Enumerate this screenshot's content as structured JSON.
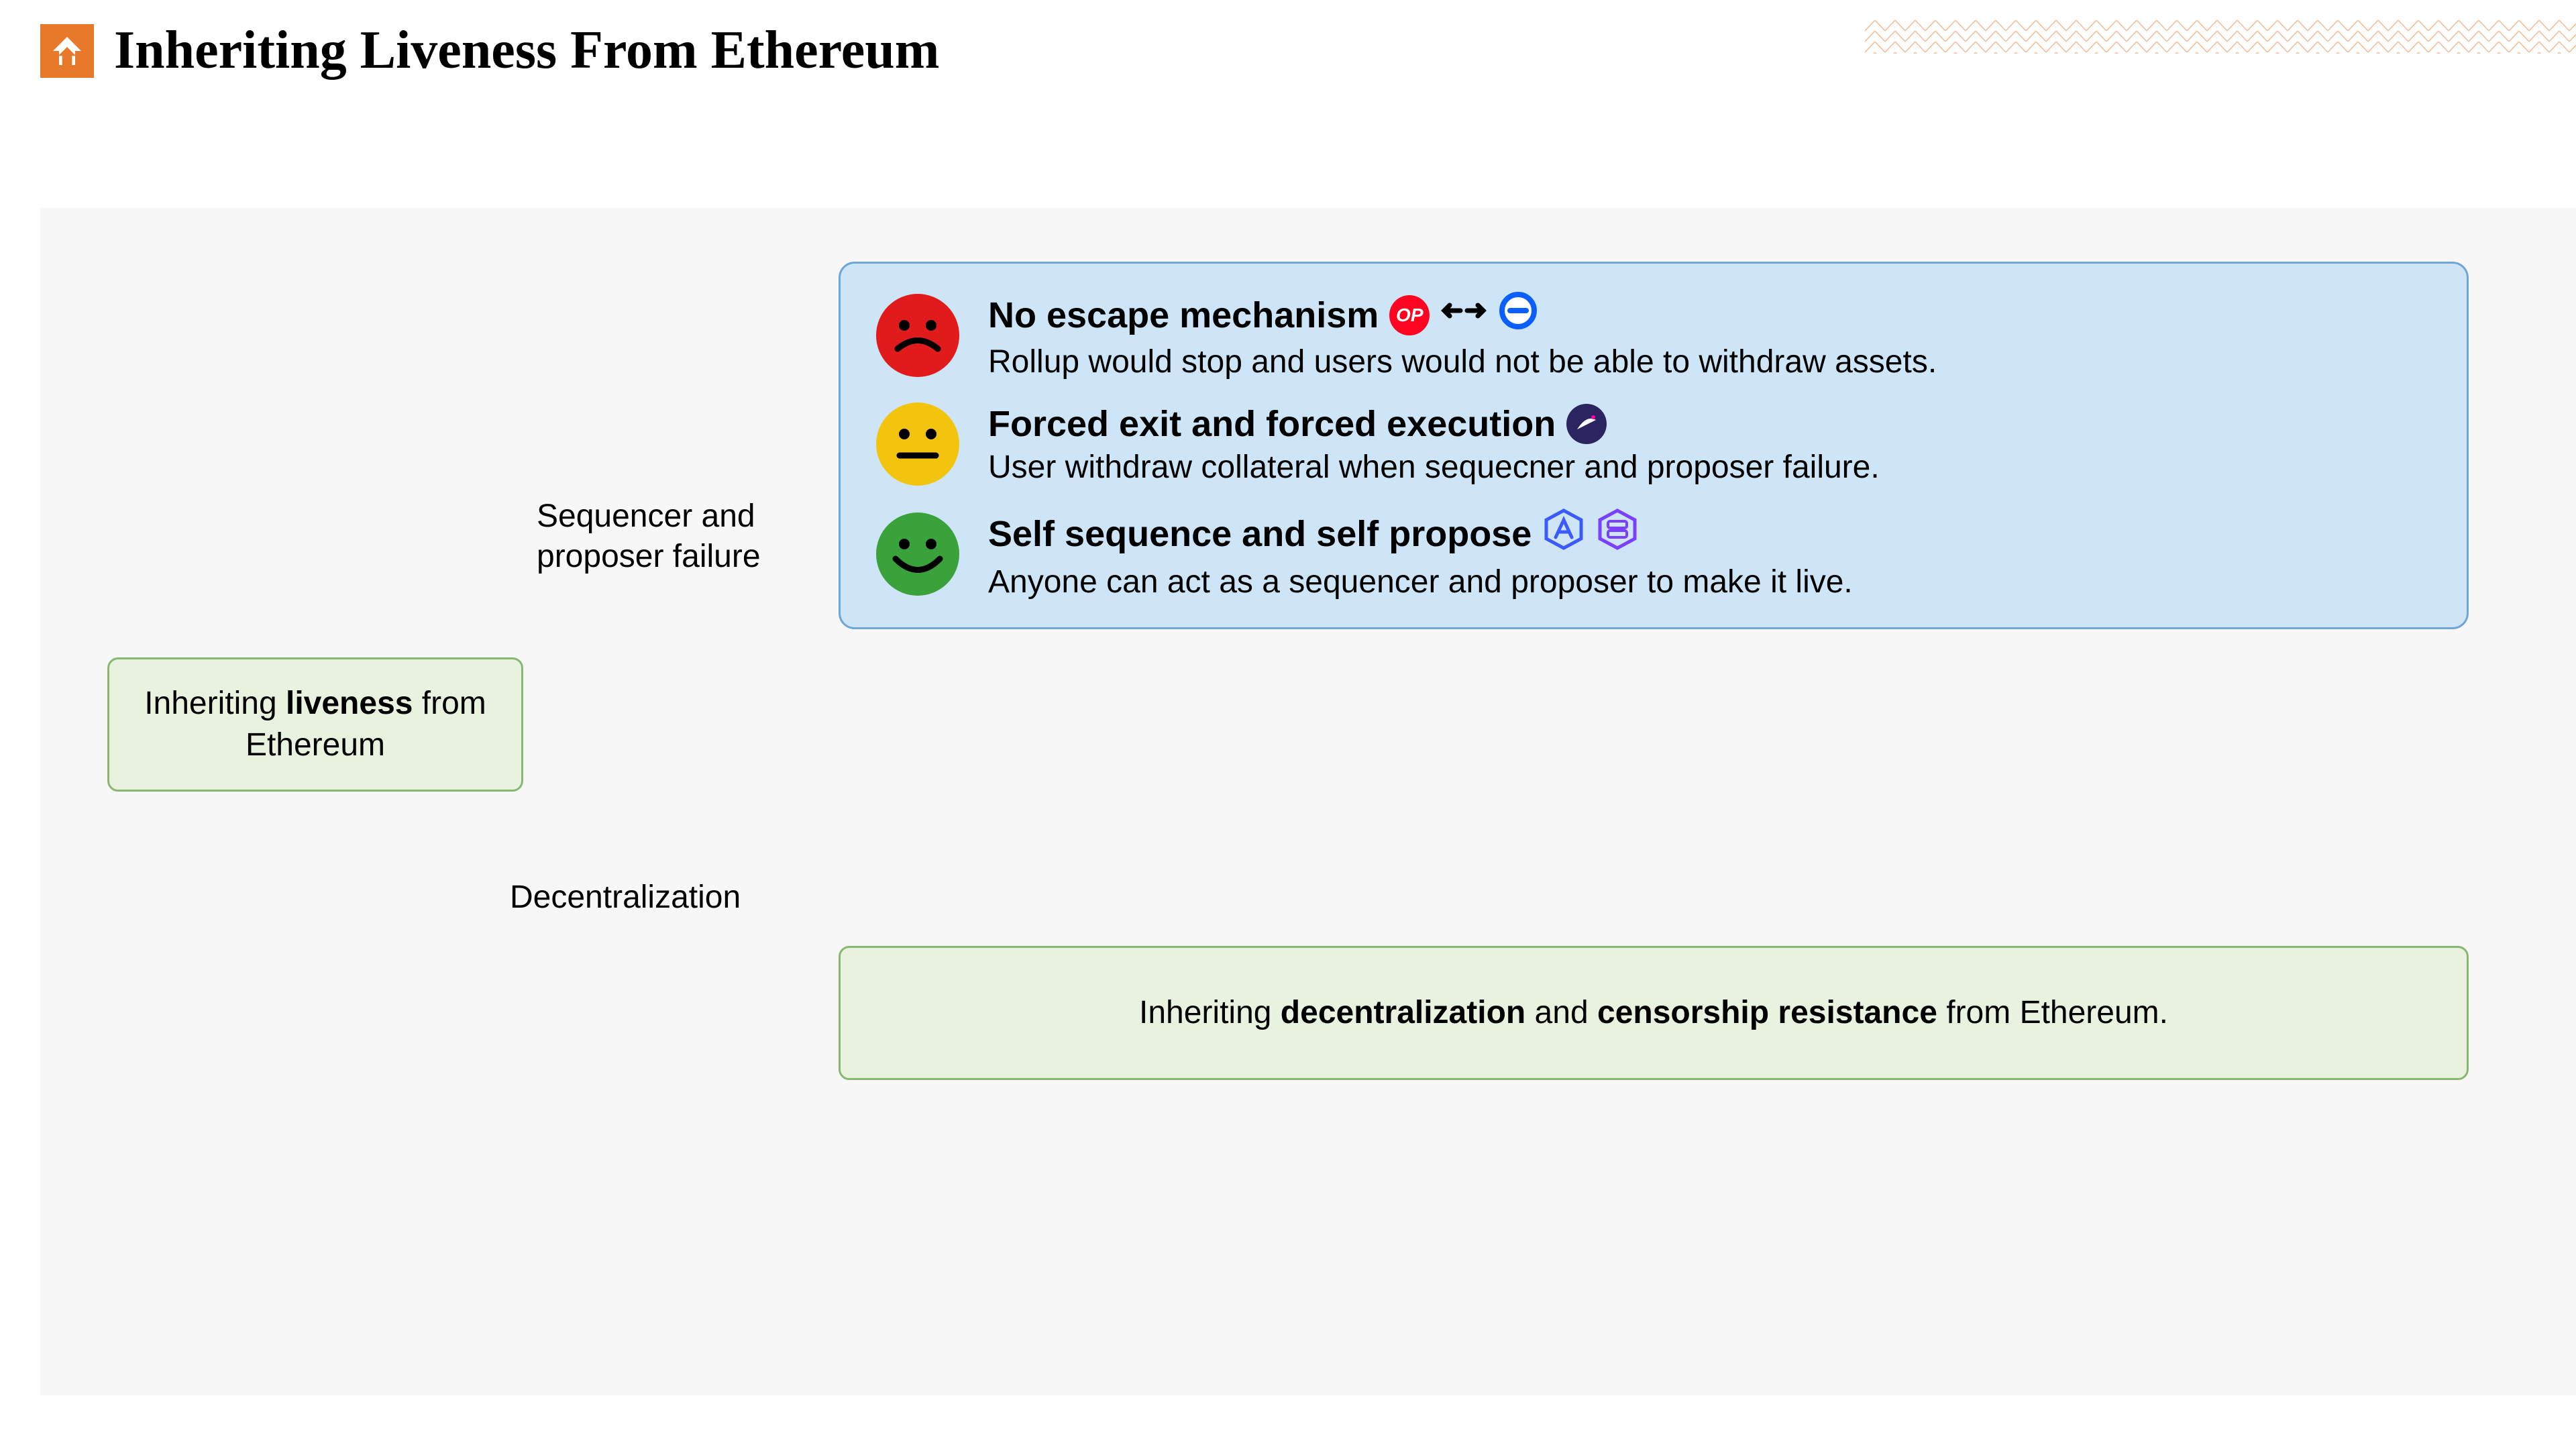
{
  "title": "Inheriting Liveness From Ethereum",
  "title_fontsize": 80,
  "title_color": "#000000",
  "logo_bg": "#e8782a",
  "pattern_stroke": "#e8782a",
  "content_bg": "#f7f7f7",
  "body_fontsize": 48,
  "heading_fontsize": 54,
  "source": {
    "text_pre": "Inheriting ",
    "bold": "liveness",
    "text_post": " from Ethereum",
    "bg": "#e8f2de",
    "border": "#88b870"
  },
  "edges": {
    "top_label_line1": "Sequencer and",
    "top_label_line2": "proposer failure",
    "bottom_label": "Decentralization",
    "stroke": "#000000",
    "stroke_width": 3
  },
  "mechanisms_box": {
    "bg": "#cde5f6",
    "border": "#6fa6d6"
  },
  "mechanisms": [
    {
      "face": "sad",
      "face_color": "#e11b1b",
      "title": "No escape mechanism",
      "desc": "Rollup would stop and users would not be able to withdraw assets.",
      "badges": [
        "op",
        "arrows",
        "circleminus"
      ]
    },
    {
      "face": "neutral",
      "face_color": "#f3c40d",
      "title": "Forced exit and forced execution",
      "desc": "User withdraw collateral when sequecner and proposer failure.",
      "badges": [
        "swirl"
      ]
    },
    {
      "face": "happy",
      "face_color": "#39a23a",
      "title": "Self sequence and self propose",
      "desc": "Anyone can act as a sequencer and proposer to make it live.",
      "badges": [
        "hexA",
        "hexB"
      ]
    }
  ],
  "decentral": {
    "text_pre": "Inheriting ",
    "bold1": "decentralization",
    "text_mid": " and ",
    "bold2": "censorship resistance",
    "text_post": " from Ethereum.",
    "bg": "#e8f2de",
    "border": "#88b870"
  },
  "badge_styles": {
    "op": {
      "bg": "#ff0420",
      "label": "OP"
    },
    "circleminus": {
      "stroke": "#0b5fff"
    },
    "swirl": {
      "bg": "#2a2560"
    },
    "hexA": {
      "stroke": "#3b5bff"
    },
    "hexB": {
      "stroke": "#7b3fff"
    }
  }
}
